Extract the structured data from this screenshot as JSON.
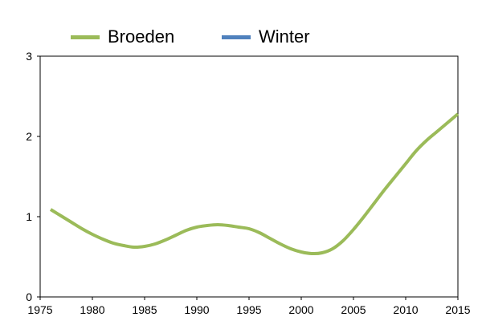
{
  "chart_data": {
    "type": "line",
    "title": "",
    "xlabel": "",
    "ylabel": "",
    "xlim": [
      1975,
      2015
    ],
    "ylim": [
      0,
      3
    ],
    "x_ticks": [
      "1975",
      "1980",
      "1985",
      "1990",
      "1995",
      "2000",
      "2005",
      "2010",
      "2015"
    ],
    "y_ticks": [
      "0",
      "1",
      "2",
      "3"
    ],
    "grid": false,
    "legend_position": "top",
    "series": [
      {
        "name": "Broeden",
        "color": "#9bbb59",
        "x": [
          1976,
          1977,
          1978,
          1979,
          1980,
          1981,
          1982,
          1983,
          1984,
          1985,
          1986,
          1987,
          1988,
          1989,
          1990,
          1991,
          1992,
          1993,
          1994,
          1995,
          1996,
          1997,
          1998,
          1999,
          2000,
          2001,
          2002,
          2003,
          2004,
          2005,
          2006,
          2007,
          2008,
          2009,
          2010,
          2011,
          2012,
          2013,
          2014,
          2015
        ],
        "values": [
          1.09,
          1.01,
          0.93,
          0.85,
          0.78,
          0.72,
          0.67,
          0.64,
          0.62,
          0.63,
          0.66,
          0.71,
          0.77,
          0.83,
          0.87,
          0.89,
          0.9,
          0.89,
          0.87,
          0.85,
          0.8,
          0.73,
          0.66,
          0.6,
          0.56,
          0.54,
          0.55,
          0.6,
          0.7,
          0.84,
          1.0,
          1.17,
          1.34,
          1.5,
          1.66,
          1.82,
          1.95,
          2.06,
          2.17,
          2.28
        ]
      },
      {
        "name": "Winter",
        "color": "#4f81bd",
        "x": [],
        "values": []
      }
    ]
  }
}
